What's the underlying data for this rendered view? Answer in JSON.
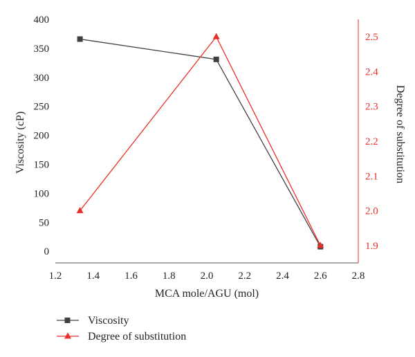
{
  "chart_data": {
    "type": "line",
    "xlabel": "MCA mole/AGU (mol)",
    "ylabel": "Viscosity (cP)",
    "y2label": "Degree of substitution",
    "xlim": [
      1.2,
      2.8
    ],
    "ylim": [
      -20,
      400
    ],
    "y2lim": [
      1.85,
      2.55
    ],
    "xticks": [
      "1.2",
      "1.4",
      "1.6",
      "1.8",
      "2.0",
      "2.2",
      "2.4",
      "2.6",
      "2.8"
    ],
    "yticks": [
      "0",
      "50",
      "100",
      "150",
      "200",
      "250",
      "300",
      "350",
      "400"
    ],
    "y2ticks": [
      "1.9",
      "2.0",
      "2.1",
      "2.2",
      "2.3",
      "2.4",
      "2.5"
    ],
    "grid": false,
    "legend_position": "bottom-left",
    "series": [
      {
        "name": "Viscosity",
        "axis": "left",
        "color": "#404040",
        "marker": "square",
        "x": [
          1.33,
          2.05,
          2.6
        ],
        "y": [
          366,
          331,
          8
        ]
      },
      {
        "name": "Degree of substitution",
        "axis": "right",
        "color": "#e8302a",
        "marker": "triangle",
        "x": [
          1.33,
          2.05,
          2.6
        ],
        "y": [
          2.0,
          2.5,
          1.9
        ]
      }
    ]
  }
}
